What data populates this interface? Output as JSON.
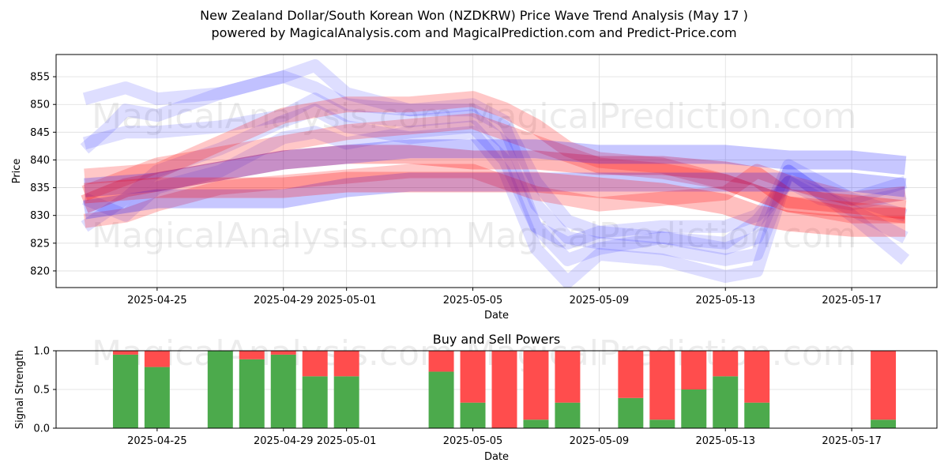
{
  "chart_data": [
    {
      "type": "line",
      "title": "New Zealand Dollar/South Korean Won (NZDKRW) Price Wave Trend Analysis (May 17 )",
      "subtitle": "powered by MagicalAnalysis.com and MagicalPrediction.com and Predict-Price.com",
      "xlabel": "Date",
      "ylabel": "Price",
      "ylim": [
        817,
        859
      ],
      "xlim": [
        -3.2,
        24.7
      ],
      "grid": true,
      "x_ticks": [
        {
          "label": "2025-04-25",
          "day": 0
        },
        {
          "label": "2025-04-29",
          "day": 4
        },
        {
          "label": "2025-05-01",
          "day": 6
        },
        {
          "label": "2025-05-05",
          "day": 10
        },
        {
          "label": "2025-05-09",
          "day": 14
        },
        {
          "label": "2025-05-13",
          "day": 18
        },
        {
          "label": "2025-05-17",
          "day": 22
        }
      ],
      "y_ticks": [
        820,
        825,
        830,
        835,
        840,
        845,
        850,
        855
      ],
      "x_day_origin": "2025-04-25",
      "watermarks": [
        "MagicalAnalysis.com",
        "MagicalPrediction.com",
        "MagicalAnalysis.com",
        "MagicalPrediction.com"
      ],
      "series": [
        {
          "name": "blue band a",
          "color": "#0000ff",
          "width": 16,
          "opacity": 0.13,
          "x": [
            -2.3,
            -1,
            0,
            2,
            4,
            5,
            6,
            8,
            10,
            11,
            12,
            13,
            14,
            16,
            18,
            19,
            20,
            21,
            22,
            23.7
          ],
          "y": [
            851,
            853,
            851,
            852,
            855,
            857,
            852,
            849,
            849,
            846,
            832,
            826,
            825,
            824,
            822,
            823,
            838,
            834,
            831,
            826
          ]
        },
        {
          "name": "blue band b",
          "color": "#0000ff",
          "width": 16,
          "opacity": 0.13,
          "x": [
            -2.3,
            -1,
            0,
            2,
            4,
            5,
            6,
            8,
            10,
            11,
            12,
            13,
            14,
            16,
            18,
            19,
            20,
            21,
            22,
            23.7
          ],
          "y": [
            843,
            845,
            845,
            846,
            848,
            851,
            848,
            847,
            848,
            843,
            828,
            822,
            824,
            826,
            824,
            826,
            839,
            836,
            833,
            830
          ]
        },
        {
          "name": "blue band c",
          "color": "#0000ff",
          "width": 16,
          "opacity": 0.13,
          "x": [
            -2.3,
            -1.5,
            -1,
            0,
            2,
            4,
            5,
            6,
            8,
            10,
            11,
            12,
            13,
            14,
            16,
            18,
            19,
            20,
            21,
            22,
            23.7
          ],
          "y": [
            842,
            846,
            849,
            848,
            852,
            855,
            853,
            850,
            849,
            850,
            847,
            836,
            829,
            827,
            826,
            825,
            829,
            836,
            834,
            833,
            836
          ]
        },
        {
          "name": "blue band d",
          "color": "#0000ff",
          "width": 16,
          "opacity": 0.13,
          "x": [
            -2.3,
            -1,
            0,
            2,
            4,
            5,
            6,
            8,
            10,
            11,
            12,
            13,
            14,
            16,
            18,
            19,
            20,
            21,
            22,
            23.7
          ],
          "y": [
            828,
            833,
            838,
            842,
            847,
            849,
            846,
            844,
            845,
            838,
            824,
            818,
            823,
            822,
            819,
            820,
            838,
            834,
            830,
            822
          ]
        },
        {
          "name": "blue band e",
          "color": "#0000ff",
          "width": 16,
          "opacity": 0.13,
          "x": [
            -2.3,
            -1,
            0,
            2,
            4,
            5,
            6,
            8,
            10,
            11,
            12,
            13,
            14,
            16,
            18,
            19,
            20,
            21,
            22,
            23.7
          ],
          "y": [
            833,
            830,
            835,
            838,
            844,
            845,
            843,
            845,
            846,
            840,
            828,
            825,
            827,
            828,
            828,
            830,
            836,
            833,
            832,
            834
          ]
        },
        {
          "name": "red band a",
          "color": "#ff0000",
          "width": 20,
          "opacity": 0.22,
          "x": [
            -2.3,
            0,
            2,
            4,
            5,
            6,
            8,
            10,
            11,
            12,
            13,
            14,
            16,
            18,
            19,
            20,
            22,
            23.7
          ],
          "y": [
            837,
            838,
            843,
            848,
            849,
            850,
            850,
            851,
            849,
            846,
            842,
            840,
            839,
            836,
            834,
            832,
            830,
            830
          ]
        },
        {
          "name": "red band b",
          "color": "#ff0000",
          "width": 20,
          "opacity": 0.22,
          "x": [
            -2.3,
            0,
            2,
            4,
            6,
            8,
            10,
            12,
            14,
            16,
            18,
            19,
            20,
            22,
            23.7
          ],
          "y": [
            834,
            839,
            841,
            843,
            845,
            846,
            847,
            843,
            839,
            838,
            836,
            834,
            832,
            831,
            830
          ]
        },
        {
          "name": "red band c",
          "color": "#ff0000",
          "width": 24,
          "opacity": 0.28,
          "x": [
            -2.3,
            -1,
            0,
            2,
            4,
            6,
            8,
            10,
            12,
            14,
            16,
            18,
            19,
            20,
            22,
            23.7
          ],
          "y": [
            832,
            835,
            836,
            838,
            840,
            841,
            841,
            840,
            840,
            839,
            839,
            838,
            837,
            833,
            832,
            831
          ]
        },
        {
          "name": "red band d",
          "color": "#ff0000",
          "width": 18,
          "opacity": 0.22,
          "x": [
            -2.3,
            -1,
            0,
            2,
            4,
            6,
            8,
            10,
            12,
            14,
            16,
            18,
            19,
            20,
            22,
            23.7
          ],
          "y": [
            829,
            830,
            832,
            835,
            836,
            837,
            838,
            838,
            834,
            832,
            833,
            834,
            838,
            836,
            833,
            834
          ]
        },
        {
          "name": "blue flat upper",
          "color": "#0000ff",
          "width": 24,
          "opacity": 0.22,
          "x": [
            -2.3,
            0,
            2,
            4,
            6,
            8,
            10,
            12,
            14,
            16,
            18,
            20,
            22,
            23.7
          ],
          "y": [
            835,
            836,
            838,
            840,
            841,
            842,
            842,
            842,
            841,
            841,
            841,
            840,
            840,
            839
          ]
        },
        {
          "name": "blue flat lower",
          "color": "#0000ff",
          "width": 24,
          "opacity": 0.22,
          "x": [
            -2.3,
            0,
            2,
            4,
            6,
            8,
            10,
            12,
            14,
            16,
            18,
            20,
            22,
            23.7
          ],
          "y": [
            831,
            833,
            833,
            833,
            835,
            836,
            836,
            836,
            836,
            836,
            836,
            836,
            836,
            835
          ]
        },
        {
          "name": "red flat",
          "color": "#ff0000",
          "width": 26,
          "opacity": 0.25,
          "x": [
            -2.3,
            0,
            2,
            4,
            6,
            8,
            10,
            12,
            14,
            16,
            18,
            19,
            20,
            22,
            23.7
          ],
          "y": [
            834,
            835,
            835,
            835,
            836,
            836,
            836,
            836,
            835,
            834,
            832,
            830,
            829,
            828,
            828
          ]
        }
      ]
    },
    {
      "type": "bar",
      "title": "Buy and Sell Powers",
      "xlabel": "Date",
      "ylabel": "Signal Strength",
      "ylim": [
        0,
        1
      ],
      "grid": true,
      "y_ticks": [
        0.0,
        0.5,
        1.0
      ],
      "y_tick_labels": [
        "0.0",
        "0.5",
        "1.0"
      ],
      "x_ticks": [
        {
          "label": "2025-04-25",
          "day": 0
        },
        {
          "label": "2025-04-29",
          "day": 4
        },
        {
          "label": "2025-05-01",
          "day": 6
        },
        {
          "label": "2025-05-05",
          "day": 10
        },
        {
          "label": "2025-05-09",
          "day": 14
        },
        {
          "label": "2025-05-13",
          "day": 18
        },
        {
          "label": "2025-05-17",
          "day": 22
        }
      ],
      "xlim": [
        -3.2,
        24.7
      ],
      "watermarks": [
        "MagicalAnalysis.com",
        "MagicalPrediction.com"
      ],
      "series": [
        {
          "name": "Buy",
          "color": "#4caa4c",
          "days": [
            -1,
            0,
            2,
            3,
            4,
            5,
            6,
            9,
            10,
            11,
            12,
            13,
            15,
            16,
            17,
            18,
            19,
            20,
            23
          ],
          "values": [
            0.95,
            0.79,
            1.0,
            0.89,
            0.95,
            0.67,
            0.67,
            0.73,
            0.33,
            0.0,
            0.11,
            0.33,
            0.39,
            0.11,
            0.5,
            0.67,
            0.33,
            0.0,
            0.11
          ]
        },
        {
          "name": "Sell",
          "color": "#ff4d4d",
          "days": [
            -1,
            0,
            2,
            3,
            4,
            5,
            6,
            9,
            10,
            11,
            12,
            13,
            15,
            16,
            17,
            18,
            19,
            20,
            23
          ],
          "values": [
            0.05,
            0.21,
            0.0,
            0.11,
            0.05,
            0.33,
            0.33,
            0.27,
            0.67,
            1.0,
            0.89,
            0.67,
            0.61,
            0.89,
            0.5,
            0.33,
            0.67,
            0.0,
            0.89
          ]
        }
      ]
    }
  ]
}
